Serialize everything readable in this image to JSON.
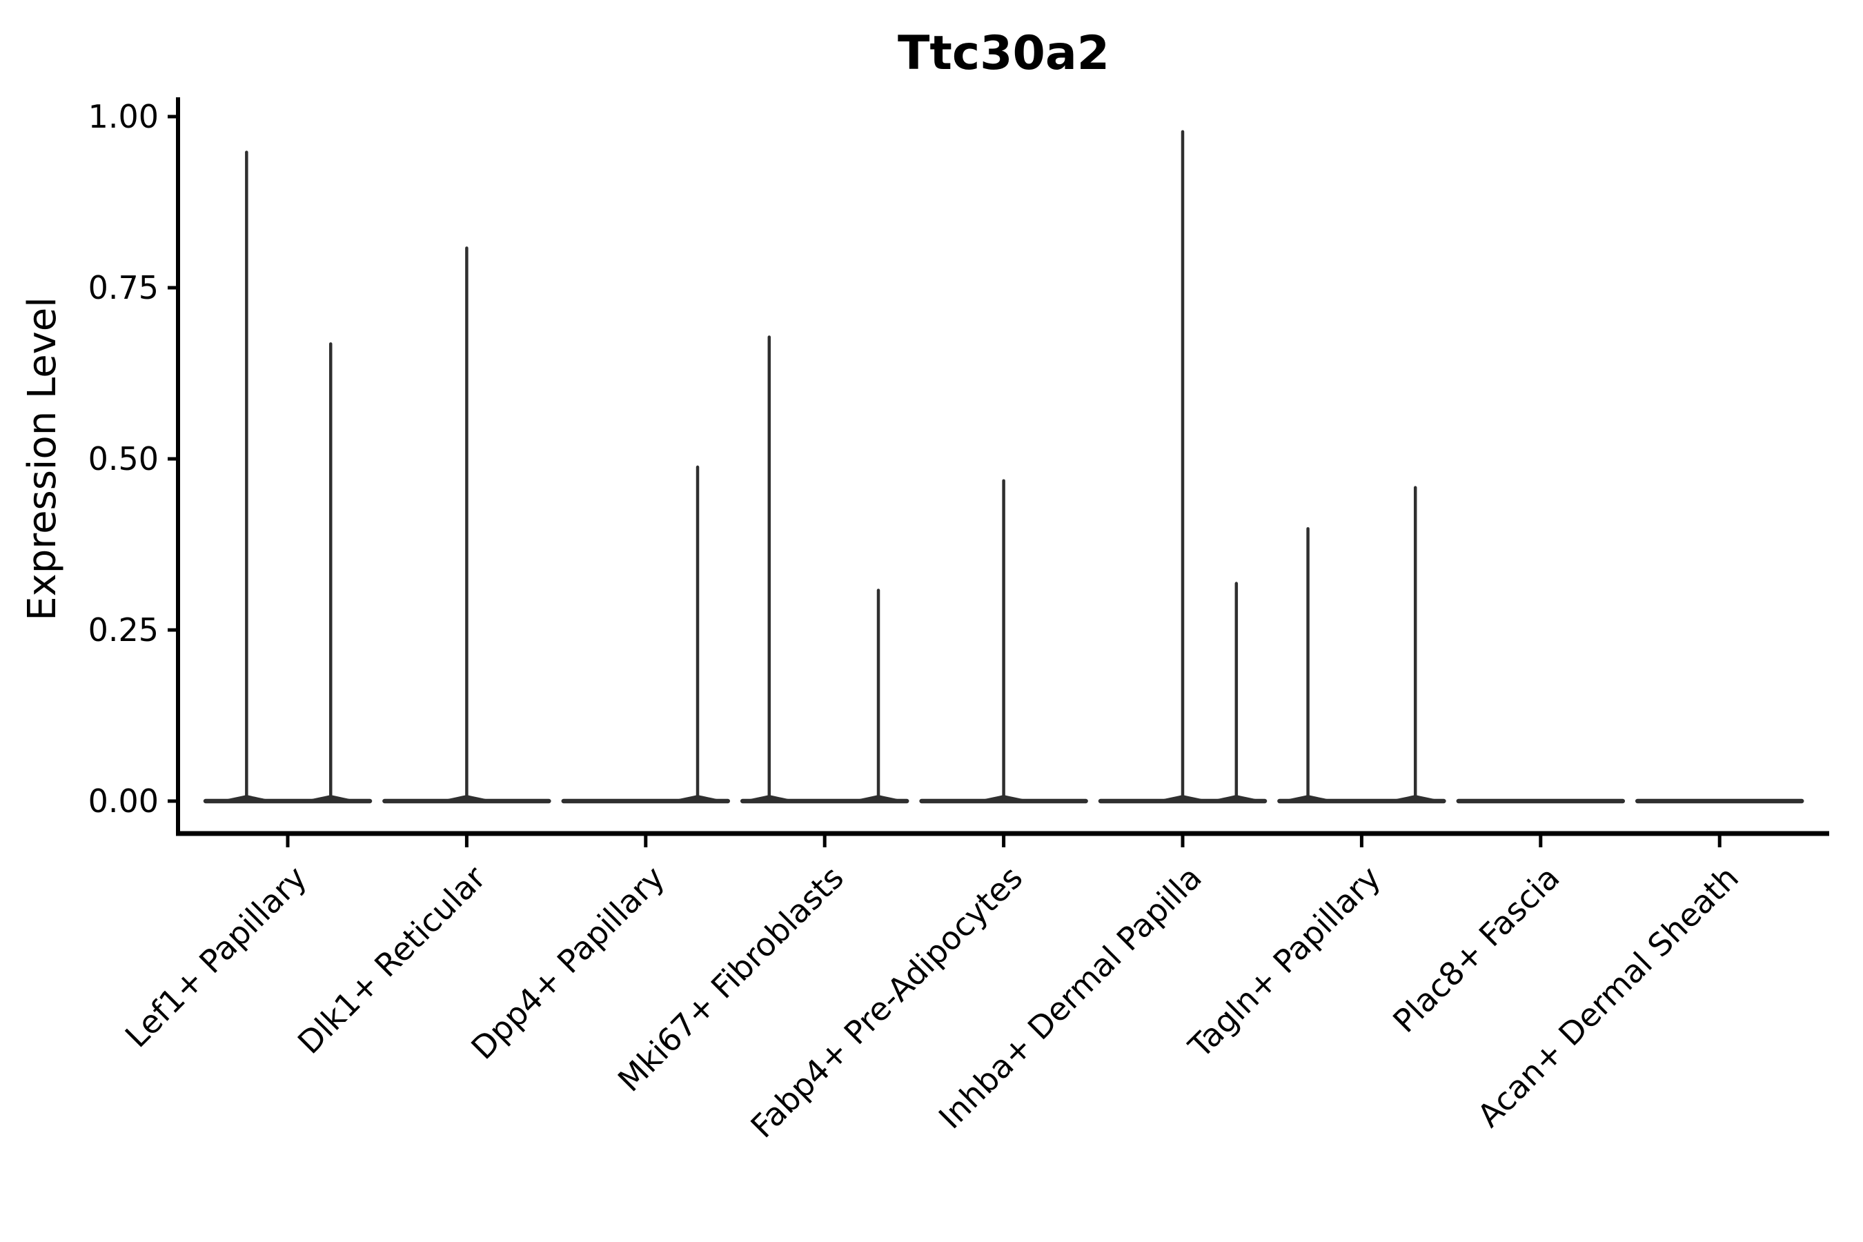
{
  "figure": {
    "title": "Ttc30a2",
    "background": "#ffffff"
  },
  "chart_data": {
    "type": "violin",
    "title": "Ttc30a2",
    "xlabel": "",
    "ylabel": "Expression Level",
    "ylim": [
      0,
      1.0
    ],
    "grid": false,
    "legend_position": "none",
    "yticks": [
      {
        "value": 0.0,
        "label": "0.00"
      },
      {
        "value": 0.25,
        "label": "0.25"
      },
      {
        "value": 0.5,
        "label": "0.50"
      },
      {
        "value": 0.75,
        "label": "0.75"
      },
      {
        "value": 1.0,
        "label": "1.00"
      }
    ],
    "categories": [
      "Lef1+ Papillary",
      "Dlk1+ Reticular",
      "Dpp4+ Papillary",
      "Mki67+ Fibroblasts",
      "Fabp4+ Pre-Adipocytes",
      "Inhba+ Dermal Papilla",
      "Tagln+ Papillary",
      "Plac8+ Fascia",
      "Acan+ Dermal Sheath"
    ],
    "violins": [
      {
        "category": "Lef1+ Papillary",
        "baseline": 0.0,
        "spikes": [
          {
            "pos": -0.23,
            "max": 0.95
          },
          {
            "pos": 0.24,
            "max": 0.67
          }
        ]
      },
      {
        "category": "Dlk1+ Reticular",
        "baseline": 0.0,
        "spikes": [
          {
            "pos": 0.0,
            "max": 0.81
          }
        ]
      },
      {
        "category": "Dpp4+ Papillary",
        "baseline": 0.0,
        "spikes": [
          {
            "pos": 0.29,
            "max": 0.49
          }
        ]
      },
      {
        "category": "Mki67+ Fibroblasts",
        "baseline": 0.0,
        "spikes": [
          {
            "pos": -0.31,
            "max": 0.68
          },
          {
            "pos": 0.3,
            "max": 0.31
          }
        ]
      },
      {
        "category": "Fabp4+ Pre-Adipocytes",
        "baseline": 0.0,
        "spikes": [
          {
            "pos": 0.0,
            "max": 0.47
          }
        ]
      },
      {
        "category": "Inhba+ Dermal Papilla",
        "baseline": 0.0,
        "spikes": [
          {
            "pos": 0.0,
            "max": 0.98
          },
          {
            "pos": 0.3,
            "max": 0.32
          }
        ]
      },
      {
        "category": "Tagln+ Papillary",
        "baseline": 0.0,
        "spikes": [
          {
            "pos": -0.3,
            "max": 0.4
          },
          {
            "pos": 0.3,
            "max": 0.46
          }
        ]
      },
      {
        "category": "Plac8+ Fascia",
        "baseline": 0.0,
        "spikes": []
      },
      {
        "category": "Acan+ Dermal Sheath",
        "baseline": 0.0,
        "spikes": []
      }
    ],
    "colors": {
      "violin": "#2f2f2f",
      "axis": "#000000",
      "text": "#000000",
      "background": "#ffffff"
    }
  }
}
